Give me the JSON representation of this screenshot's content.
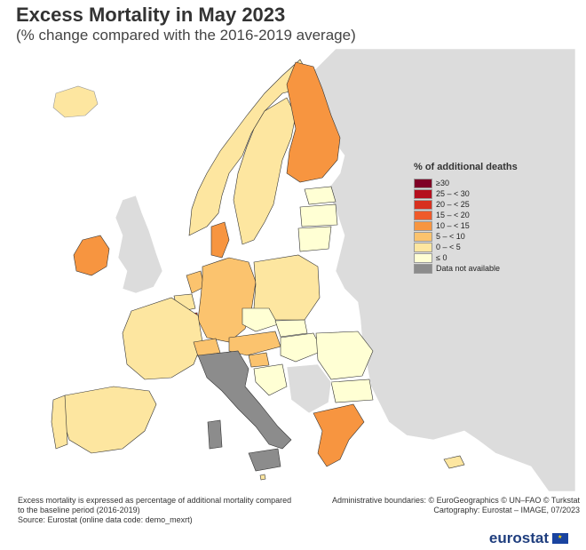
{
  "title": "Excess Mortality in May 2023",
  "subtitle": "(% change compared with the 2016-2019 average)",
  "legend": {
    "title": "% of additional deaths",
    "items": [
      {
        "label": "≥30",
        "color": "#7f0025"
      },
      {
        "label": "25 – < 30",
        "color": "#b50f1e"
      },
      {
        "label": "20 – < 25",
        "color": "#d7301f"
      },
      {
        "label": "15 – < 20",
        "color": "#ef5a2a"
      },
      {
        "label": "10 – < 15",
        "color": "#f79540"
      },
      {
        "label": "5 – < 10",
        "color": "#fbc36e"
      },
      {
        "label": "0 – < 5",
        "color": "#fde6a0"
      },
      {
        "label": "≤ 0",
        "color": "#ffffd4"
      },
      {
        "label": "Data not available",
        "color": "#8c8c8c"
      }
    ]
  },
  "footer": {
    "left_line1": "Excess mortality is expressed as percentage of additional mortality compared",
    "left_line2": "to the baseline period (2016-2019)",
    "left_line3": "Source: Eurostat (online data code: demo_mexrt)",
    "right_line1": "Administrative boundaries: © EuroGeographics © UN–FAO © Turkstat",
    "right_line2": "Cartography: Eurostat – IMAGE, 07/2023"
  },
  "brand": "eurostat",
  "colors": {
    "sea": "#ffffff",
    "non_eu": "#dcdcdc",
    "na": "#8c8c8c",
    "c_0_5": "#fde6a0",
    "c_le0": "#ffffd4",
    "c_5_10": "#fbc36e",
    "c_10_15": "#f79540",
    "c_15_20": "#ef5a2a",
    "c_20_25": "#d7301f"
  }
}
